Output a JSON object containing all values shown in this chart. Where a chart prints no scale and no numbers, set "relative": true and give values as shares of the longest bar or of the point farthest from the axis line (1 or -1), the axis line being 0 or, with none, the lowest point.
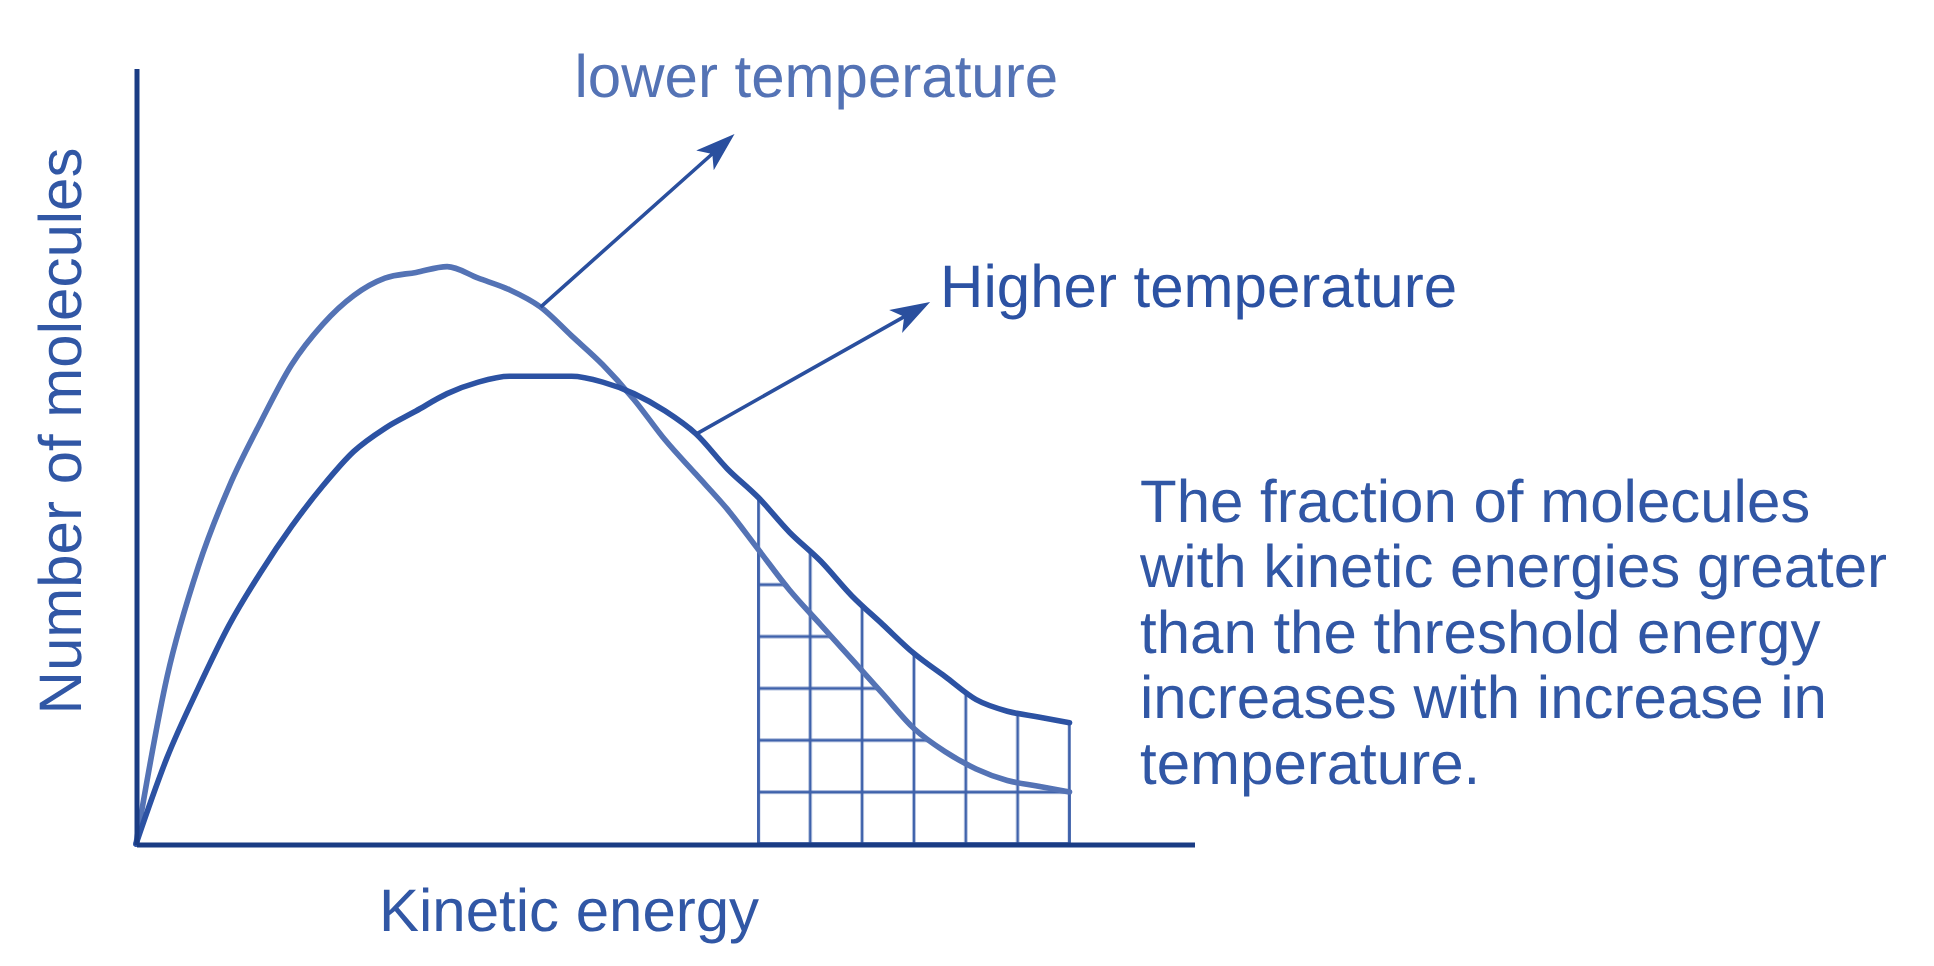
{
  "chart_data": {
    "type": "line",
    "relative": true,
    "xlabel": "Kinetic energy",
    "ylabel": "Number of molecules",
    "categories": [
      null,
      null,
      null,
      null,
      null,
      null,
      null,
      null,
      null,
      null,
      null,
      null,
      null,
      null,
      null,
      null,
      null,
      null,
      null,
      null,
      null,
      null,
      null,
      null,
      null,
      null,
      null,
      null,
      null,
      null,
      null,
      null,
      null,
      null,
      null
    ],
    "series": [
      {
        "name": "lower temperature",
        "color": "#5473b5",
        "values": [
          0,
          0.29,
          0.48,
          0.62,
          0.73,
          0.83,
          0.9,
          0.95,
          0.98,
          0.99,
          1,
          0.98,
          0.96,
          0.93,
          0.88,
          0.83,
          0.77,
          0.7,
          0.64,
          0.58,
          0.51,
          0.44,
          0.38,
          0.32,
          0.26,
          0.2,
          0.16,
          0.13,
          0.11,
          0.1,
          0.09,
          null,
          null,
          null,
          null
        ]
      },
      {
        "name": "Higher temperature",
        "color": "#2c52a3",
        "values": [
          0,
          0.15,
          0.27,
          0.38,
          0.47,
          0.55,
          0.62,
          0.68,
          0.72,
          0.75,
          0.78,
          0.8,
          0.81,
          0.81,
          0.81,
          0.8,
          0.78,
          0.75,
          0.71,
          0.65,
          0.6,
          0.54,
          0.49,
          0.43,
          0.38,
          0.33,
          0.29,
          0.25,
          0.23,
          0.22,
          0.21,
          null,
          null,
          null,
          null
        ]
      },
      {
        "type": "area",
        "color": "#3f62ab",
        "values": [
          null,
          null,
          null,
          null,
          null,
          null,
          null,
          null,
          null,
          null,
          null,
          null,
          null,
          null,
          null,
          null,
          null,
          null,
          null,
          null,
          0.6,
          0.54,
          0.49,
          0.43,
          0.38,
          0.33,
          0.29,
          0.25,
          0.23,
          0.22,
          0.21,
          null,
          null,
          null,
          null
        ]
      },
      {
        "type": "area",
        "color": "#3f62ab",
        "values": [
          null,
          null,
          null,
          null,
          null,
          null,
          null,
          null,
          null,
          null,
          null,
          null,
          null,
          null,
          null,
          null,
          null,
          null,
          null,
          null,
          0.51,
          0.44,
          0.38,
          0.32,
          0.26,
          0.2,
          0.16,
          0.13,
          0.11,
          0.1,
          0.09,
          null,
          null,
          null,
          null
        ]
      }
    ],
    "annotations": [
      "The fraction of molecules with kinetic energies greater than the threshold energy increases with increase in temperature."
    ]
  }
}
